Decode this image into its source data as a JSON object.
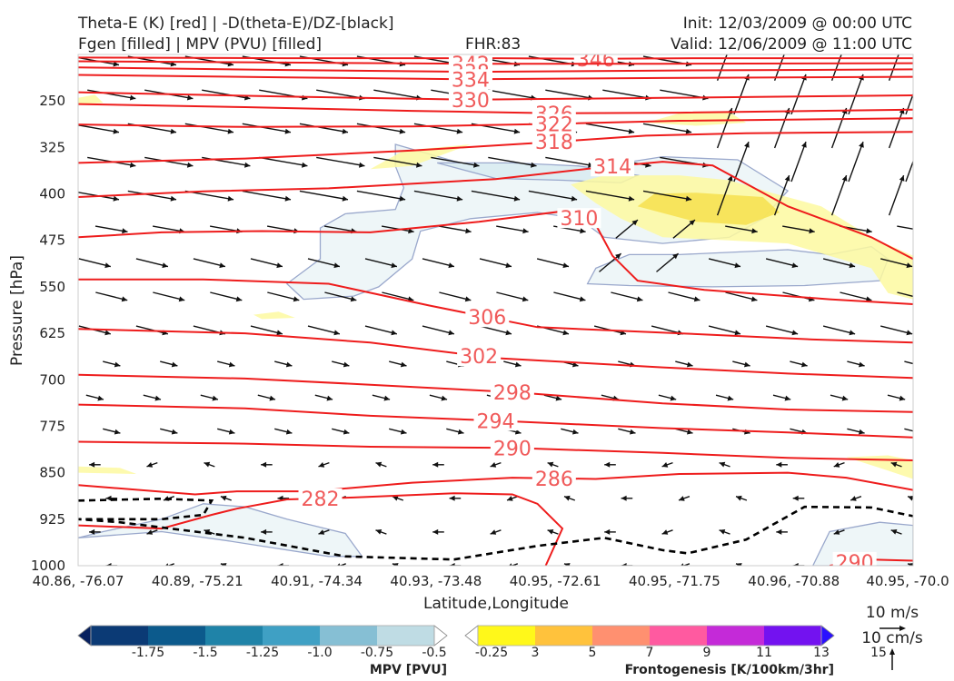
{
  "header": {
    "title_line1": "Theta-E (K) [red] | -D(theta-E)/DZ-[black]",
    "title_line2": "Fgen [filled] | MPV (PVU) [filled]",
    "fhr": "FHR:83",
    "init": "Init: 12/03/2009 @ 00:00 UTC",
    "valid": "Valid: 12/06/2009 @ 11:00 UTC"
  },
  "chart_data": {
    "type": "contour",
    "xlabel": "Latitude,Longitude",
    "ylabel": "Pressure [hPa]",
    "x_ticks": [
      "40.86, -76.07",
      "40.89, -75.21",
      "40.91, -74.34",
      "40.93, -73.48",
      "40.95, -72.61",
      "40.95, -71.75",
      "40.96, -70.88",
      "40.95, -70.0"
    ],
    "y_ticks": [
      250,
      325,
      400,
      475,
      550,
      625,
      700,
      775,
      850,
      925,
      1000
    ],
    "ylim": [
      1000,
      175
    ],
    "y_inverted": true,
    "theta_e_contours": [
      {
        "label": "346",
        "level": 346,
        "points": [
          [
            0.0,
            180
          ],
          [
            0.25,
            181
          ],
          [
            0.5,
            181
          ],
          [
            0.62,
            182
          ],
          [
            0.75,
            181
          ],
          [
            1.0,
            181
          ]
        ]
      },
      {
        "label": "342",
        "level": 342,
        "points": [
          [
            0.0,
            186
          ],
          [
            0.25,
            188
          ],
          [
            0.47,
            190
          ],
          [
            0.7,
            190
          ],
          [
            1.0,
            189
          ]
        ]
      },
      {
        "label": "338",
        "level": 338,
        "points": [
          [
            0.0,
            196
          ],
          [
            0.25,
            200
          ],
          [
            0.47,
            203
          ],
          [
            0.7,
            201
          ],
          [
            1.0,
            199
          ]
        ]
      },
      {
        "label": "334",
        "level": 334,
        "points": [
          [
            0.0,
            208
          ],
          [
            0.25,
            212
          ],
          [
            0.47,
            215
          ],
          [
            0.7,
            213
          ],
          [
            1.0,
            211
          ]
        ]
      },
      {
        "label": "330",
        "level": 330,
        "points": [
          [
            0.0,
            236
          ],
          [
            0.25,
            243
          ],
          [
            0.47,
            248
          ],
          [
            0.7,
            245
          ],
          [
            1.0,
            241
          ]
        ]
      },
      {
        "label": "326",
        "level": 326,
        "points": [
          [
            0.0,
            255
          ],
          [
            0.2,
            260
          ],
          [
            0.4,
            266
          ],
          [
            0.57,
            270
          ],
          [
            0.72,
            269
          ],
          [
            1.0,
            264
          ]
        ]
      },
      {
        "label": "322",
        "level": 322,
        "points": [
          [
            0.0,
            288
          ],
          [
            0.2,
            292
          ],
          [
            0.4,
            291
          ],
          [
            0.57,
            287
          ],
          [
            0.72,
            282
          ],
          [
            1.0,
            278
          ]
        ]
      },
      {
        "label": "318",
        "level": 318,
        "points": [
          [
            0.0,
            350
          ],
          [
            0.2,
            343
          ],
          [
            0.4,
            330
          ],
          [
            0.57,
            316
          ],
          [
            0.68,
            306
          ],
          [
            0.8,
            302
          ],
          [
            1.0,
            300
          ]
        ]
      },
      {
        "label": "314",
        "level": 314,
        "points": [
          [
            0.0,
            405
          ],
          [
            0.15,
            396
          ],
          [
            0.3,
            391
          ],
          [
            0.5,
            376
          ],
          [
            0.62,
            358
          ],
          [
            0.7,
            348
          ],
          [
            0.76,
            354
          ],
          [
            0.85,
            420
          ],
          [
            0.95,
            470
          ],
          [
            1.0,
            505
          ]
        ]
      },
      {
        "label": "310",
        "level": 310,
        "points": [
          [
            0.0,
            470
          ],
          [
            0.1,
            462
          ],
          [
            0.22,
            460
          ],
          [
            0.35,
            462
          ],
          [
            0.48,
            445
          ],
          [
            0.58,
            428
          ],
          [
            0.62,
            450
          ],
          [
            0.64,
            500
          ],
          [
            0.67,
            540
          ],
          [
            0.75,
            555
          ],
          [
            0.9,
            570
          ],
          [
            1.0,
            578
          ]
        ]
      },
      {
        "label": "306",
        "level": 306,
        "points": [
          [
            0.0,
            538
          ],
          [
            0.15,
            538
          ],
          [
            0.3,
            545
          ],
          [
            0.42,
            580
          ],
          [
            0.55,
            615
          ],
          [
            0.72,
            625
          ],
          [
            0.88,
            635
          ],
          [
            1.0,
            640
          ]
        ]
      },
      {
        "label": "302",
        "level": 302,
        "points": [
          [
            0.0,
            618
          ],
          [
            0.2,
            625
          ],
          [
            0.35,
            640
          ],
          [
            0.5,
            665
          ],
          [
            0.7,
            680
          ],
          [
            0.85,
            690
          ],
          [
            1.0,
            697
          ]
        ]
      },
      {
        "label": "298",
        "level": 298,
        "points": [
          [
            0.0,
            692
          ],
          [
            0.2,
            698
          ],
          [
            0.35,
            708
          ],
          [
            0.52,
            720
          ],
          [
            0.7,
            738
          ],
          [
            0.85,
            748
          ],
          [
            1.0,
            752
          ]
        ]
      },
      {
        "label": "294",
        "level": 294,
        "points": [
          [
            0.0,
            740
          ],
          [
            0.2,
            746
          ],
          [
            0.35,
            758
          ],
          [
            0.5,
            766
          ],
          [
            0.7,
            778
          ],
          [
            0.85,
            785
          ],
          [
            1.0,
            793
          ]
        ]
      },
      {
        "label": "290",
        "level": 290,
        "points": [
          [
            0.0,
            800
          ],
          [
            0.2,
            803
          ],
          [
            0.35,
            808
          ],
          [
            0.52,
            810
          ],
          [
            0.7,
            818
          ],
          [
            0.85,
            826
          ],
          [
            1.0,
            830
          ]
        ]
      },
      {
        "label": "286",
        "level": 286,
        "points": [
          [
            0.0,
            870
          ],
          [
            0.14,
            885
          ],
          [
            0.19,
            880
          ],
          [
            0.28,
            880
          ],
          [
            0.4,
            866
          ],
          [
            0.52,
            858
          ],
          [
            0.62,
            860
          ],
          [
            0.72,
            852
          ],
          [
            0.85,
            850
          ],
          [
            0.92,
            858
          ],
          [
            1.0,
            878
          ]
        ]
      },
      {
        "label": "282",
        "level": 282,
        "points": [
          [
            0.0,
            935
          ],
          [
            0.1,
            940
          ],
          [
            0.16,
            918
          ],
          [
            0.19,
            908
          ],
          [
            0.25,
            893
          ],
          [
            0.33,
            890
          ],
          [
            0.45,
            883
          ],
          [
            0.52,
            885
          ],
          [
            0.55,
            900
          ],
          [
            0.58,
            940
          ],
          [
            0.56,
            1000
          ]
        ]
      },
      {
        "label": "290",
        "level": 290,
        "points": [
          [
            0.9,
            1000
          ],
          [
            0.95,
            990
          ],
          [
            1.0,
            992
          ]
        ]
      }
    ],
    "neg_dthetae_dz_contour": [
      [
        0.0,
        895
      ],
      [
        0.1,
        892
      ],
      [
        0.16,
        895
      ],
      [
        0.15,
        918
      ],
      [
        0.1,
        925
      ],
      [
        0.0,
        925
      ],
      [
        0.05,
        930
      ],
      [
        0.2,
        955
      ],
      [
        0.32,
        985
      ],
      [
        0.45,
        990
      ],
      [
        0.55,
        968
      ],
      [
        0.63,
        955
      ],
      [
        0.7,
        975
      ],
      [
        0.73,
        980
      ],
      [
        0.8,
        958
      ],
      [
        0.87,
        905
      ],
      [
        0.95,
        906
      ],
      [
        1.0,
        920
      ]
    ],
    "mpv_regions": [
      {
        "level": -0.25,
        "points": [
          [
            0.38,
            320
          ],
          [
            0.47,
            355
          ],
          [
            0.57,
            365
          ],
          [
            0.63,
            355
          ],
          [
            0.7,
            340
          ],
          [
            0.79,
            345
          ],
          [
            0.85,
            395
          ],
          [
            0.82,
            440
          ],
          [
            0.78,
            470
          ],
          [
            0.7,
            480
          ],
          [
            0.63,
            470
          ],
          [
            0.6,
            440
          ],
          [
            0.55,
            430
          ],
          [
            0.47,
            440
          ],
          [
            0.41,
            460
          ],
          [
            0.4,
            505
          ],
          [
            0.36,
            550
          ],
          [
            0.33,
            565
          ],
          [
            0.27,
            570
          ],
          [
            0.25,
            545
          ],
          [
            0.29,
            505
          ],
          [
            0.29,
            455
          ],
          [
            0.32,
            432
          ],
          [
            0.38,
            425
          ],
          [
            0.39,
            390
          ],
          [
            0.38,
            355
          ]
        ]
      },
      {
        "level": -0.25,
        "points": [
          [
            0.62,
            520
          ],
          [
            0.66,
            498
          ],
          [
            0.72,
            498
          ],
          [
            0.85,
            490
          ],
          [
            0.9,
            498
          ],
          [
            0.95,
            485
          ],
          [
            0.97,
            505
          ],
          [
            0.96,
            540
          ],
          [
            0.87,
            548
          ],
          [
            0.76,
            550
          ],
          [
            0.66,
            548
          ],
          [
            0.61,
            545
          ]
        ]
      },
      {
        "level": -0.25,
        "points": [
          [
            0.0,
            955
          ],
          [
            0.03,
            945
          ],
          [
            0.1,
            925
          ],
          [
            0.15,
            900
          ],
          [
            0.2,
            905
          ],
          [
            0.25,
            925
          ],
          [
            0.32,
            948
          ],
          [
            0.34,
            985
          ],
          [
            0.3,
            985
          ],
          [
            0.18,
            960
          ],
          [
            0.1,
            945
          ]
        ]
      },
      {
        "level": -0.25,
        "points": [
          [
            0.88,
            1000
          ],
          [
            0.9,
            945
          ],
          [
            0.96,
            930
          ],
          [
            1.0,
            935
          ],
          [
            1.0,
            1000
          ]
        ]
      },
      {
        "level": -0.5,
        "points": [
          [
            0.43,
            350
          ],
          [
            0.5,
            375
          ],
          [
            0.58,
            378
          ],
          [
            0.65,
            382
          ],
          [
            0.67,
            370
          ],
          [
            0.6,
            355
          ],
          [
            0.52,
            350
          ]
        ]
      }
    ],
    "fgen_regions": [
      {
        "level": 3,
        "points": [
          [
            0.59,
            385
          ],
          [
            0.63,
            370
          ],
          [
            0.72,
            370
          ],
          [
            0.78,
            378
          ],
          [
            0.83,
            398
          ],
          [
            0.89,
            420
          ],
          [
            0.95,
            470
          ],
          [
            1.0,
            500
          ],
          [
            1.0,
            570
          ],
          [
            0.97,
            560
          ],
          [
            0.95,
            520
          ],
          [
            0.9,
            500
          ],
          [
            0.85,
            480
          ],
          [
            0.78,
            475
          ],
          [
            0.7,
            470
          ],
          [
            0.65,
            440
          ],
          [
            0.62,
            415
          ]
        ]
      },
      {
        "level": 3,
        "points": [
          [
            0.35,
            360
          ],
          [
            0.39,
            330
          ],
          [
            0.47,
            320
          ],
          [
            0.4,
            355
          ]
        ]
      },
      {
        "level": 3,
        "points": [
          [
            0.68,
            285
          ],
          [
            0.72,
            270
          ],
          [
            0.78,
            268
          ],
          [
            0.8,
            285
          ],
          [
            0.74,
            290
          ]
        ]
      },
      {
        "level": 3,
        "points": [
          [
            0.0,
            245
          ],
          [
            0.02,
            240
          ],
          [
            0.03,
            253
          ],
          [
            0.0,
            255
          ]
        ]
      },
      {
        "level": 3,
        "points": [
          [
            0.0,
            840
          ],
          [
            0.05,
            842
          ],
          [
            0.07,
            852
          ],
          [
            0.0,
            850
          ]
        ]
      },
      {
        "level": 3,
        "points": [
          [
            0.92,
            825
          ],
          [
            0.97,
            822
          ],
          [
            1.0,
            830
          ],
          [
            1.0,
            860
          ],
          [
            0.96,
            842
          ]
        ]
      },
      {
        "level": 3,
        "points": [
          [
            0.21,
            595
          ],
          [
            0.24,
            590
          ],
          [
            0.26,
            600
          ],
          [
            0.22,
            602
          ]
        ]
      },
      {
        "level": 5,
        "points": [
          [
            0.67,
            420
          ],
          [
            0.69,
            400
          ],
          [
            0.74,
            398
          ],
          [
            0.82,
            405
          ],
          [
            0.84,
            430
          ],
          [
            0.8,
            450
          ],
          [
            0.74,
            445
          ]
        ]
      }
    ],
    "mpv_colorbar": {
      "label": "MPV [PVU]",
      "ticks": [
        "-1.75",
        "-1.5",
        "-1.25",
        "-1.0",
        "-0.75",
        "-0.5",
        "-0.25"
      ],
      "colors": [
        "#08215f",
        "#0b3a75",
        "#0c5a8c",
        "#1f83a8",
        "#3fa0c4",
        "#86bfd4",
        "#bfdce4",
        "#ffffff"
      ]
    },
    "fgen_colorbar": {
      "label": "Frontogenesis [K/100km/3hr]",
      "ticks": [
        "3",
        "5",
        "7",
        "9",
        "11",
        "13",
        "15"
      ],
      "colors": [
        "#ffffff",
        "#fff81a",
        "#ffc23c",
        "#ff9070",
        "#ff5aa0",
        "#c42ad8",
        "#7312f0",
        "#2a10ff"
      ]
    },
    "wind_reference": {
      "horizontal": "10 m/s",
      "vertical": "10 cm/s"
    }
  }
}
